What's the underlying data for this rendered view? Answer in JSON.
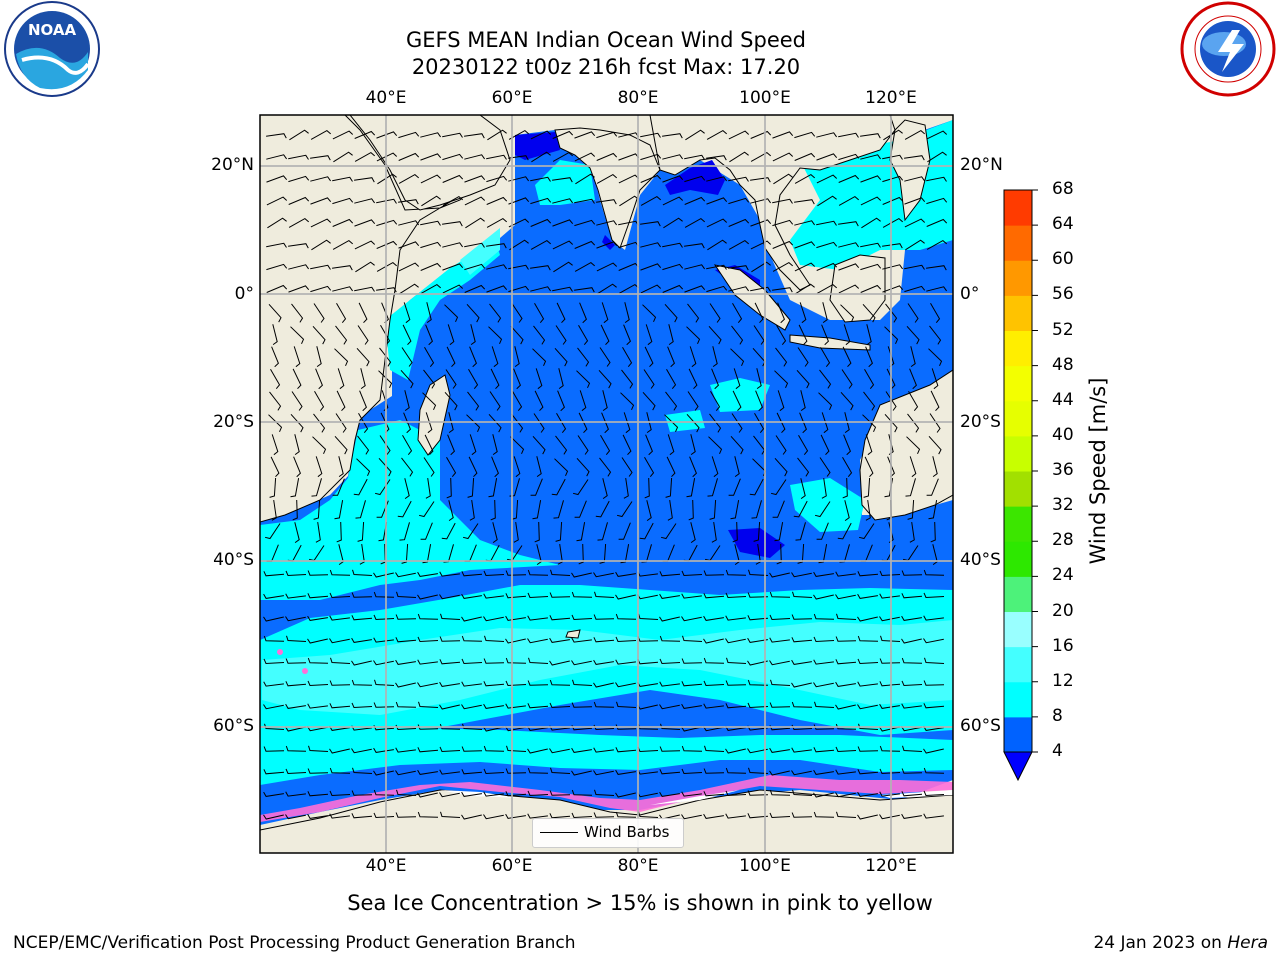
{
  "title": {
    "line1": "GEFS MEAN Indian Ocean Wind Speed",
    "line2": "20230122 t00z 216h fcst   Max: 17.20"
  },
  "logos": {
    "left": {
      "name": "NOAA",
      "text": "NOAA"
    },
    "right": {
      "name": "National Weather Service"
    }
  },
  "axes": {
    "lon_labels": [
      "40°E",
      "60°E",
      "80°E",
      "100°E",
      "120°E"
    ],
    "lon_values": [
      40,
      60,
      80,
      100,
      120
    ],
    "lat_labels": [
      "20°N",
      "0°",
      "20°S",
      "40°S",
      "60°S"
    ],
    "lat_values": [
      20,
      0,
      -20,
      -40,
      -60
    ],
    "lon_range": [
      20,
      130
    ],
    "lat_range": [
      -72,
      27
    ],
    "grid": true
  },
  "legend": {
    "label": "Wind Barbs",
    "placement": "lower-center"
  },
  "colorbar": {
    "label": "Wind Speed [m/s]",
    "ticks": [
      "4",
      "8",
      "12",
      "16",
      "20",
      "24",
      "28",
      "32",
      "36",
      "40",
      "44",
      "48",
      "52",
      "56",
      "60",
      "64",
      "68"
    ],
    "levels": [
      4,
      8,
      12,
      16,
      20,
      24,
      28,
      32,
      36,
      40,
      44,
      48,
      52,
      56,
      60,
      64,
      68
    ],
    "colors": [
      "#0062ff",
      "#00ffff",
      "#44ffff",
      "#99ffff",
      "#4df27a",
      "#2de800",
      "#3ce600",
      "#a2e000",
      "#c8ff00",
      "#e6ff00",
      "#f3ff00",
      "#ffee00",
      "#ffc300",
      "#ff9800",
      "#ff6a00",
      "#ff3b00",
      "#ff0000"
    ],
    "under_color": "#0000ff",
    "extend": "min"
  },
  "colors": {
    "land": "#efecdd",
    "ocean_calm": "#0000ee",
    "ocean_low": "#0a6cff",
    "ocean_mid": "#00ffff",
    "ocean_high": "#3fffff",
    "sea_ice": "#ff6fd8",
    "grid": "#b3b3b3"
  },
  "caption": "Sea Ice Concentration > 15% is shown in pink to yellow",
  "footer": {
    "left": "NCEP/EMC/Verification Post Processing Product Generation Branch",
    "right_date": "24 Jan 2023 on ",
    "right_host": "Hera"
  }
}
